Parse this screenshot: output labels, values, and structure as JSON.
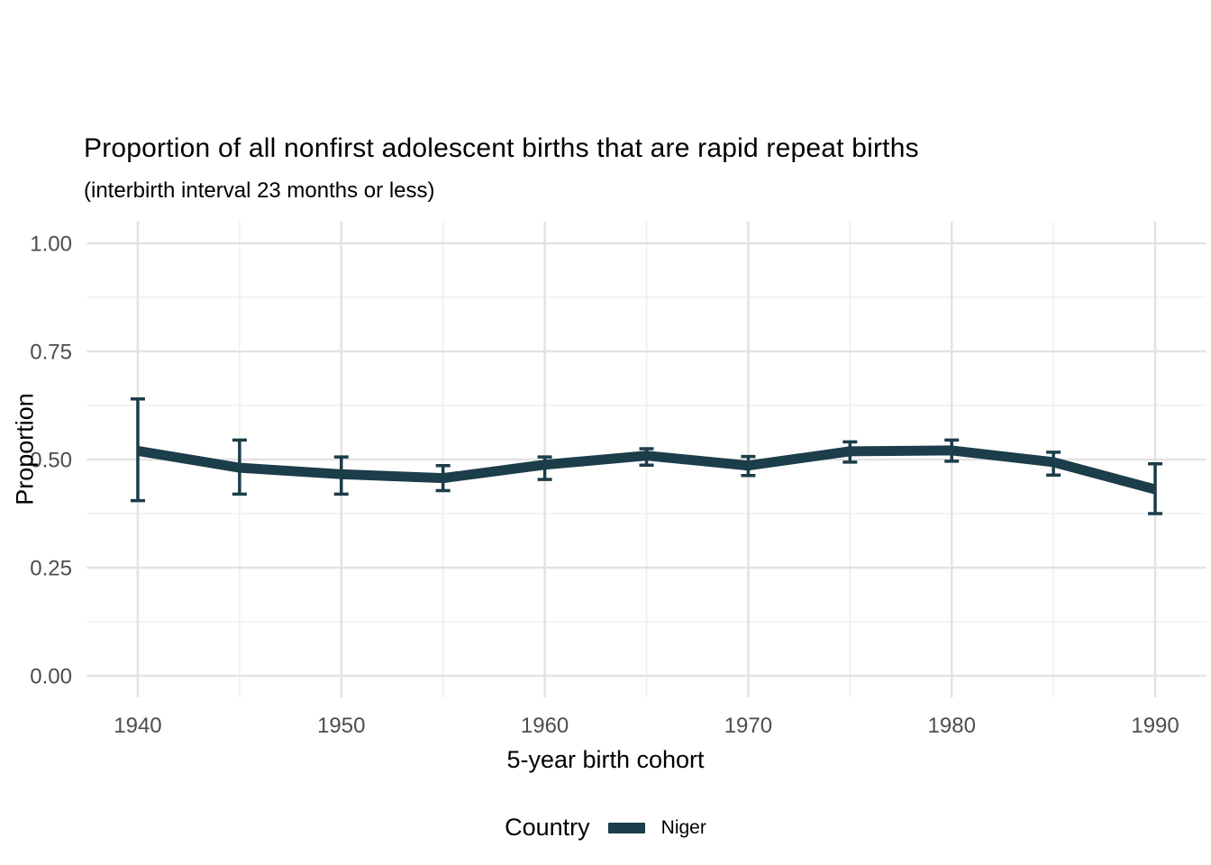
{
  "title": "Proportion of all nonfirst adolescent births that are rapid repeat births",
  "subtitle": "(interbirth interval 23 months or less)",
  "x_axis": {
    "label": "5-year birth cohort",
    "tick_labels": [
      "1940",
      "1950",
      "1960",
      "1970",
      "1980",
      "1990"
    ]
  },
  "y_axis": {
    "label": "Proportion",
    "tick_labels": [
      "0.00",
      "0.25",
      "0.50",
      "0.75",
      "1.00"
    ]
  },
  "legend": {
    "title": "Country",
    "entries": [
      {
        "label": "Niger",
        "color": "#1c3d4a"
      }
    ]
  },
  "colors": {
    "line": "#1c3d4a",
    "grid_major": "#e3e3e3",
    "grid_minor": "#efefef",
    "tick_label": "#4d4d4d",
    "text": "#000000",
    "background": "#ffffff"
  },
  "chart_data": {
    "type": "line",
    "title": "Proportion of all nonfirst adolescent births that are rapid repeat births",
    "subtitle": "(interbirth interval 23 months or less)",
    "xlabel": "5-year birth cohort",
    "ylabel": "Proportion",
    "xlim": [
      1937.5,
      1992.5
    ],
    "ylim": [
      -0.05,
      1.05
    ],
    "x_major_ticks": [
      1940,
      1950,
      1960,
      1970,
      1980,
      1990
    ],
    "x_minor_ticks": [
      1945,
      1955,
      1965,
      1975,
      1985
    ],
    "y_major_ticks": [
      0,
      0.25,
      0.5,
      0.75,
      1
    ],
    "y_minor_ticks": [
      0.125,
      0.375,
      0.625,
      0.875
    ],
    "grid": "major+minor",
    "legend_position": "bottom",
    "error_bars": true,
    "x": [
      1940,
      1945,
      1950,
      1955,
      1960,
      1965,
      1970,
      1975,
      1980,
      1985,
      1990
    ],
    "series": [
      {
        "name": "Niger",
        "color": "#1c3d4a",
        "values": [
          0.52,
          0.481,
          0.466,
          0.457,
          0.488,
          0.509,
          0.486,
          0.519,
          0.521,
          0.494,
          0.431
        ],
        "ci_low": [
          0.405,
          0.42,
          0.42,
          0.428,
          0.454,
          0.487,
          0.463,
          0.494,
          0.496,
          0.464,
          0.375
        ],
        "ci_high": [
          0.64,
          0.545,
          0.506,
          0.486,
          0.506,
          0.525,
          0.507,
          0.541,
          0.545,
          0.517,
          0.49
        ]
      }
    ]
  }
}
